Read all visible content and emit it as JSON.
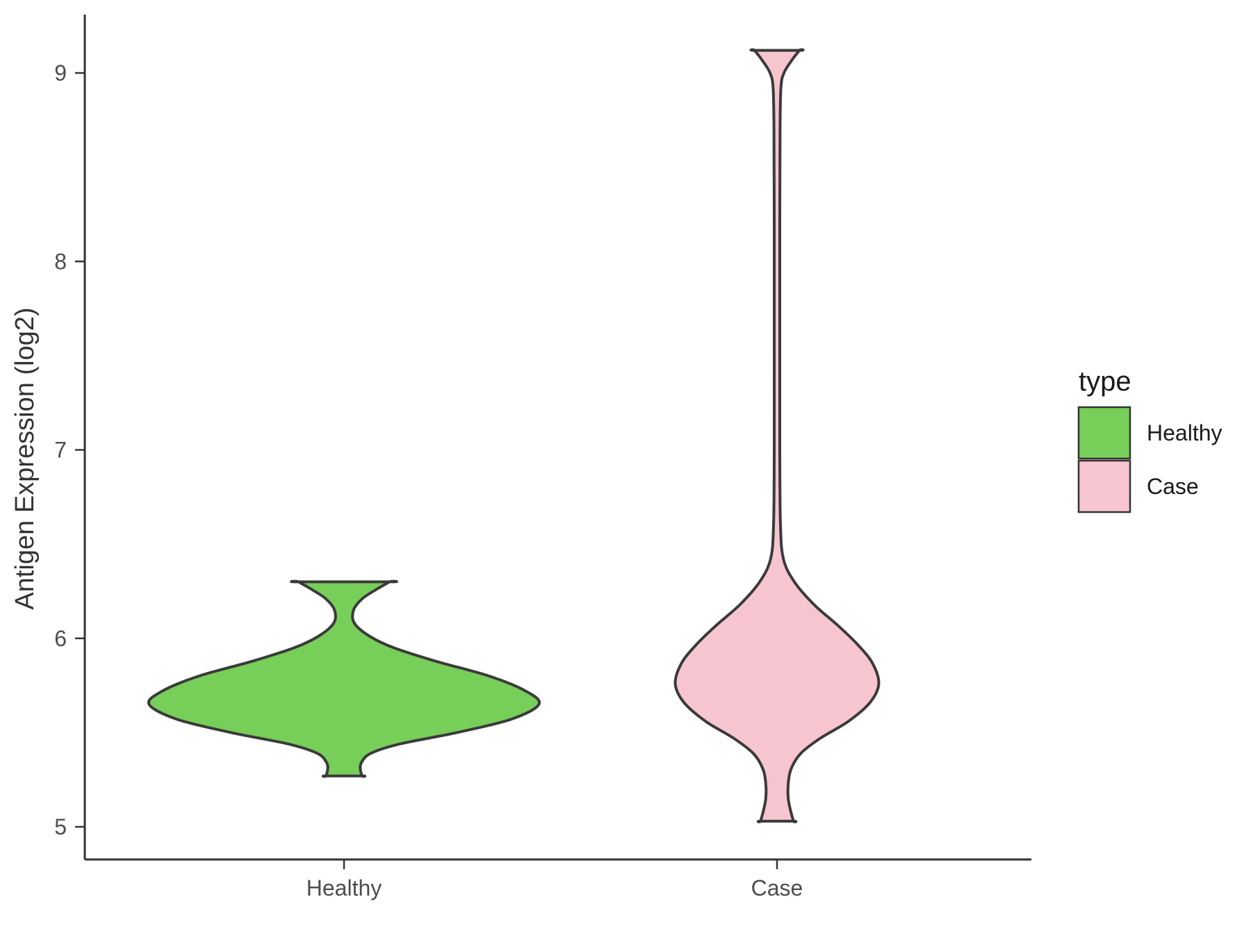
{
  "chart_data": {
    "type": "violin",
    "title": "",
    "xlabel": "",
    "ylabel": "Antigen Expression (log2)",
    "categories": [
      "Healthy",
      "Case"
    ],
    "yticks": [
      5,
      6,
      7,
      8,
      9
    ],
    "ylim": [
      4.85,
      9.3
    ],
    "grid": "off",
    "background_color": "#ffffff",
    "axis_color": "#333333",
    "outline_color": "#3a3a3a",
    "legend": {
      "title": "type",
      "position": "right",
      "items": [
        {
          "label": "Healthy",
          "color": "#77ce58"
        },
        {
          "label": "Case",
          "color": "#f7c5d0"
        }
      ]
    },
    "series": [
      {
        "name": "Healthy",
        "color": "#77ce58",
        "y_range": [
          5.27,
          6.3
        ],
        "peak_density_y": 5.65,
        "max_halfwidth": 0.45,
        "profile": [
          [
            6.3,
            0.105
          ],
          [
            6.26,
            0.075
          ],
          [
            6.21,
            0.042
          ],
          [
            6.15,
            0.022
          ],
          [
            6.08,
            0.024
          ],
          [
            6.01,
            0.06
          ],
          [
            5.95,
            0.115
          ],
          [
            5.88,
            0.21
          ],
          [
            5.8,
            0.335
          ],
          [
            5.72,
            0.42
          ],
          [
            5.65,
            0.45
          ],
          [
            5.57,
            0.385
          ],
          [
            5.5,
            0.26
          ],
          [
            5.44,
            0.13
          ],
          [
            5.39,
            0.062
          ],
          [
            5.34,
            0.04
          ],
          [
            5.3,
            0.038
          ],
          [
            5.27,
            0.042
          ]
        ]
      },
      {
        "name": "Case",
        "color": "#f7c5d0",
        "y_range": [
          5.03,
          9.12
        ],
        "peak_density_y": 5.76,
        "max_halfwidth": 0.235,
        "profile": [
          [
            9.12,
            0.052
          ],
          [
            9.07,
            0.035
          ],
          [
            9.0,
            0.016
          ],
          [
            8.92,
            0.009
          ],
          [
            8.7,
            0.007
          ],
          [
            8.2,
            0.0065
          ],
          [
            7.6,
            0.0065
          ],
          [
            7.0,
            0.0065
          ],
          [
            6.6,
            0.008
          ],
          [
            6.42,
            0.015
          ],
          [
            6.3,
            0.04
          ],
          [
            6.18,
            0.085
          ],
          [
            6.07,
            0.14
          ],
          [
            5.97,
            0.185
          ],
          [
            5.87,
            0.22
          ],
          [
            5.76,
            0.235
          ],
          [
            5.66,
            0.215
          ],
          [
            5.56,
            0.165
          ],
          [
            5.47,
            0.1
          ],
          [
            5.39,
            0.055
          ],
          [
            5.31,
            0.033
          ],
          [
            5.23,
            0.026
          ],
          [
            5.15,
            0.026
          ],
          [
            5.08,
            0.032
          ],
          [
            5.03,
            0.038
          ]
        ]
      }
    ]
  }
}
